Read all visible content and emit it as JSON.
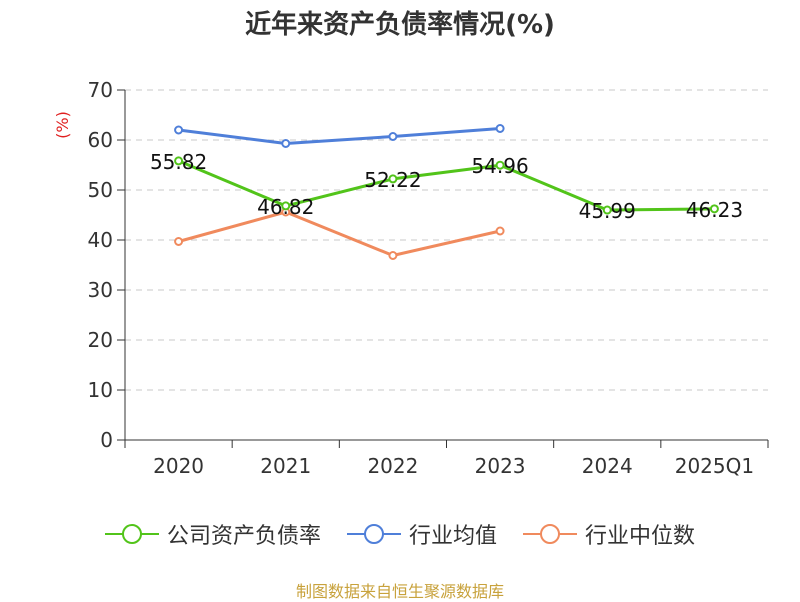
{
  "chart_data": {
    "type": "line",
    "title": "近年来资产负债率情况(%)",
    "ylabel": "(%)",
    "xlabel": "",
    "ylim": [
      0,
      70
    ],
    "yticks": [
      0,
      10,
      20,
      30,
      40,
      50,
      60,
      70
    ],
    "categories": [
      "2020",
      "2021",
      "2022",
      "2023",
      "2024",
      "2025Q1"
    ],
    "grid": true,
    "legend_position": "bottom",
    "series": [
      {
        "name": "公司资产负债率",
        "color": "#52c41a",
        "values": [
          55.82,
          46.82,
          52.22,
          54.96,
          45.99,
          46.23
        ],
        "labels": [
          "55.82",
          "46.82",
          "52.22",
          "54.96",
          "45.99",
          "46.23"
        ]
      },
      {
        "name": "行业均值",
        "color": "#4f7fd9",
        "values": [
          62.0,
          59.3,
          60.7,
          62.3,
          null,
          null
        ]
      },
      {
        "name": "行业中位数",
        "color": "#f08a5d",
        "values": [
          39.7,
          45.6,
          36.9,
          41.8,
          null,
          null
        ]
      }
    ]
  },
  "source": "制图数据来自恒生聚源数据库"
}
